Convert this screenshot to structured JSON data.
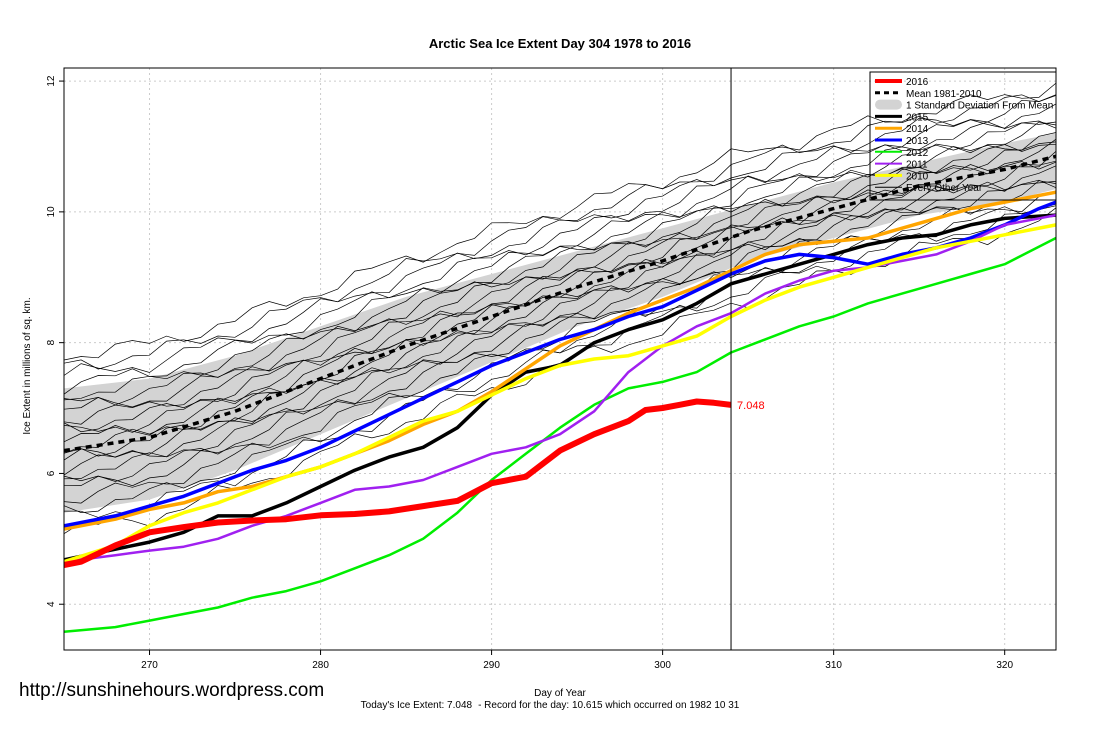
{
  "chart_data": {
    "type": "line",
    "title": "Arctic Sea Ice Extent Day 304 1978 to 2016",
    "xlabel": "Day of Year",
    "ylabel": "Ice Extent in millions of sq. km.",
    "xlim": [
      265,
      323
    ],
    "ylim": [
      3.3,
      12.2
    ],
    "xticks": [
      270,
      280,
      290,
      300,
      310,
      320
    ],
    "yticks": [
      4,
      6,
      8,
      10,
      12
    ],
    "grid": true,
    "legend_position": "top-right",
    "current_day": 304,
    "current_value": 7.048,
    "current_value_label": "7.048",
    "legend": [
      {
        "label": "2016",
        "color": "#ff0000",
        "style": "solid",
        "width": 4
      },
      {
        "label": "Mean 1981-2010",
        "color": "#000000",
        "style": "dashed",
        "width": 3
      },
      {
        "label": "1 Standard Deviation From Mean",
        "color": "#d3d3d3",
        "style": "band",
        "width": 10
      },
      {
        "label": "2015",
        "color": "#000000",
        "style": "solid",
        "width": 3
      },
      {
        "label": "2014",
        "color": "#ffa500",
        "style": "solid",
        "width": 3
      },
      {
        "label": "2013",
        "color": "#0000ff",
        "style": "solid",
        "width": 3
      },
      {
        "label": "2012",
        "color": "#00ee00",
        "style": "solid",
        "width": 2
      },
      {
        "label": "2011",
        "color": "#a020f0",
        "style": "solid",
        "width": 2
      },
      {
        "label": "2010",
        "color": "#ffff00",
        "style": "solid",
        "width": 3
      },
      {
        "label": "Every Other Year",
        "color": "#000000",
        "style": "solid",
        "width": 1
      }
    ],
    "mean": {
      "x": [
        265,
        270,
        275,
        280,
        285,
        290,
        295,
        300,
        305,
        310,
        315,
        320,
        323
      ],
      "y": [
        6.35,
        6.55,
        6.95,
        7.45,
        7.95,
        8.4,
        8.85,
        9.25,
        9.7,
        10.05,
        10.4,
        10.65,
        10.85
      ]
    },
    "std_band": {
      "x": [
        265,
        270,
        275,
        280,
        285,
        290,
        295,
        300,
        305,
        310,
        315,
        320,
        323
      ],
      "upper": [
        7.3,
        7.45,
        7.8,
        8.25,
        8.7,
        9.05,
        9.4,
        9.75,
        10.1,
        10.45,
        10.75,
        11.05,
        11.2
      ],
      "lower": [
        5.4,
        5.6,
        6.05,
        6.6,
        7.15,
        7.7,
        8.25,
        8.7,
        9.25,
        9.6,
        9.95,
        10.15,
        10.35
      ]
    },
    "series": [
      {
        "name": "2016",
        "color": "#ff0000",
        "width": 6,
        "x": [
          265,
          266,
          268,
          270,
          272,
          274,
          276,
          278,
          280,
          282,
          284,
          286,
          288,
          290,
          292,
          294,
          296,
          298,
          299,
          300,
          301,
          302,
          303,
          304
        ],
        "y": [
          4.6,
          4.65,
          4.9,
          5.1,
          5.18,
          5.25,
          5.28,
          5.3,
          5.36,
          5.38,
          5.42,
          5.5,
          5.58,
          5.85,
          5.95,
          6.35,
          6.6,
          6.8,
          6.97,
          7.0,
          7.05,
          7.1,
          7.08,
          7.048
        ]
      },
      {
        "name": "2015",
        "color": "#000000",
        "width": 3.5,
        "x": [
          265,
          270,
          272,
          274,
          276,
          278,
          280,
          282,
          284,
          286,
          288,
          290,
          292,
          294,
          296,
          298,
          300,
          302,
          304,
          306,
          308,
          310,
          312,
          314,
          316,
          318,
          320,
          323
        ],
        "y": [
          4.68,
          4.95,
          5.1,
          5.35,
          5.35,
          5.55,
          5.8,
          6.05,
          6.25,
          6.4,
          6.7,
          7.2,
          7.55,
          7.65,
          8.0,
          8.2,
          8.35,
          8.6,
          8.9,
          9.05,
          9.2,
          9.35,
          9.5,
          9.6,
          9.65,
          9.8,
          9.9,
          9.95
        ]
      },
      {
        "name": "2014",
        "color": "#ffa500",
        "width": 3.5,
        "x": [
          265,
          268,
          270,
          272,
          274,
          276,
          278,
          280,
          282,
          284,
          286,
          288,
          290,
          292,
          294,
          296,
          298,
          300,
          302,
          304,
          306,
          308,
          310,
          312,
          314,
          316,
          318,
          320,
          323
        ],
        "y": [
          5.15,
          5.3,
          5.45,
          5.55,
          5.72,
          5.8,
          5.95,
          6.1,
          6.3,
          6.5,
          6.75,
          6.95,
          7.25,
          7.6,
          7.95,
          8.2,
          8.45,
          8.65,
          8.85,
          9.1,
          9.35,
          9.5,
          9.55,
          9.6,
          9.75,
          9.9,
          10.05,
          10.15,
          10.3
        ]
      },
      {
        "name": "2013",
        "color": "#0000ff",
        "width": 3.5,
        "x": [
          265,
          268,
          270,
          272,
          274,
          276,
          278,
          280,
          282,
          284,
          286,
          288,
          290,
          292,
          294,
          296,
          298,
          300,
          302,
          304,
          306,
          308,
          310,
          312,
          314,
          316,
          318,
          320,
          322,
          323
        ],
        "y": [
          5.2,
          5.35,
          5.5,
          5.65,
          5.85,
          6.05,
          6.2,
          6.4,
          6.65,
          6.9,
          7.15,
          7.4,
          7.65,
          7.85,
          8.05,
          8.2,
          8.4,
          8.55,
          8.8,
          9.05,
          9.25,
          9.35,
          9.3,
          9.2,
          9.35,
          9.45,
          9.6,
          9.8,
          10.05,
          10.15
        ]
      },
      {
        "name": "2012",
        "color": "#00ee00",
        "width": 2.5,
        "x": [
          265,
          268,
          270,
          272,
          274,
          276,
          278,
          280,
          282,
          284,
          286,
          288,
          290,
          292,
          294,
          296,
          298,
          300,
          302,
          304,
          306,
          308,
          310,
          312,
          314,
          316,
          318,
          320,
          323
        ],
        "y": [
          3.58,
          3.65,
          3.75,
          3.85,
          3.95,
          4.1,
          4.2,
          4.35,
          4.55,
          4.75,
          5.0,
          5.4,
          5.9,
          6.3,
          6.7,
          7.05,
          7.3,
          7.4,
          7.55,
          7.85,
          8.05,
          8.25,
          8.4,
          8.6,
          8.75,
          8.9,
          9.05,
          9.2,
          9.6
        ]
      },
      {
        "name": "2011",
        "color": "#a020f0",
        "width": 2.5,
        "x": [
          265,
          268,
          270,
          272,
          274,
          276,
          278,
          280,
          282,
          284,
          286,
          288,
          290,
          292,
          294,
          296,
          298,
          300,
          302,
          304,
          306,
          308,
          310,
          312,
          314,
          316,
          318,
          320,
          323
        ],
        "y": [
          4.65,
          4.75,
          4.82,
          4.88,
          5.0,
          5.2,
          5.35,
          5.55,
          5.75,
          5.8,
          5.9,
          6.1,
          6.3,
          6.4,
          6.6,
          6.95,
          7.55,
          7.95,
          8.25,
          8.45,
          8.75,
          8.95,
          9.1,
          9.15,
          9.25,
          9.35,
          9.55,
          9.8,
          9.95
        ]
      },
      {
        "name": "2010",
        "color": "#ffff00",
        "width": 3.5,
        "x": [
          265,
          268,
          270,
          272,
          274,
          276,
          278,
          280,
          282,
          284,
          286,
          288,
          290,
          292,
          294,
          296,
          298,
          300,
          302,
          304,
          306,
          308,
          310,
          312,
          314,
          316,
          318,
          320,
          323
        ],
        "y": [
          4.65,
          4.9,
          5.2,
          5.4,
          5.55,
          5.75,
          5.95,
          6.1,
          6.3,
          6.55,
          6.8,
          6.95,
          7.2,
          7.45,
          7.65,
          7.75,
          7.8,
          7.95,
          8.1,
          8.4,
          8.65,
          8.85,
          9.0,
          9.15,
          9.3,
          9.45,
          9.55,
          9.65,
          9.8
        ]
      }
    ],
    "other_years_offsets": [
      -1.25,
      -1.05,
      -0.9,
      -0.75,
      -0.6,
      -0.48,
      -0.36,
      -0.25,
      -0.15,
      -0.05,
      0.05,
      0.15,
      0.25,
      0.35,
      0.48,
      0.6,
      0.72,
      0.85,
      1.0,
      1.15,
      1.3,
      1.45
    ]
  },
  "footer": {
    "watermark": "http://sunshinehours.wordpress.com",
    "todays_extent": "Today's Ice Extent: 7.048",
    "record": "- Record for the day: 10.615 which occurred on 1982 10 31"
  }
}
